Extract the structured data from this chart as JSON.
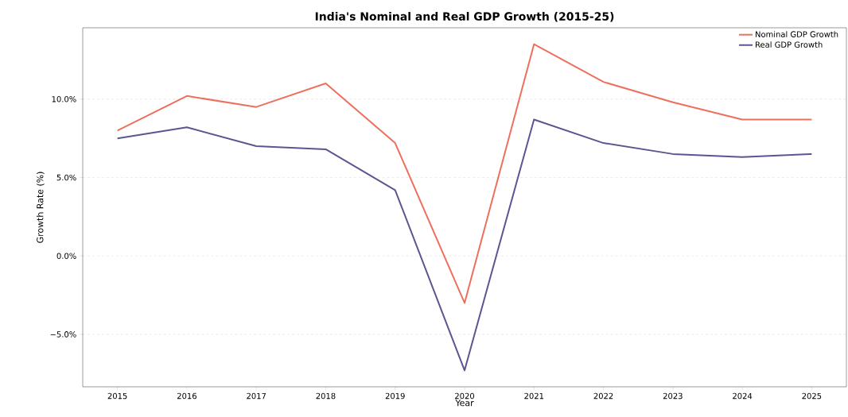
{
  "chart_data": {
    "type": "line",
    "title": "India's Nominal and Real GDP Growth (2015-25)",
    "xlabel": "Year",
    "ylabel": "Growth Rate (%)",
    "x": [
      2015,
      2016,
      2017,
      2018,
      2019,
      2020,
      2021,
      2022,
      2023,
      2024,
      2025
    ],
    "series": [
      {
        "name": "Nominal GDP Growth",
        "color": "#ee6f5e",
        "values": [
          8.0,
          10.2,
          9.5,
          11.0,
          7.2,
          -3.0,
          13.5,
          11.1,
          9.8,
          8.7,
          8.7
        ]
      },
      {
        "name": "Real GDP Growth",
        "color": "#5e5490",
        "values": [
          7.5,
          8.2,
          7.0,
          6.8,
          4.2,
          -7.3,
          8.7,
          7.2,
          6.5,
          6.3,
          6.5
        ]
      }
    ],
    "xlim": [
      2014.5,
      2025.5
    ],
    "ylim": [
      -8.35,
      14.55
    ],
    "xticks": [
      2015,
      2016,
      2017,
      2018,
      2019,
      2020,
      2021,
      2022,
      2023,
      2024,
      2025
    ],
    "yticks": [
      {
        "value": -5,
        "label": "−5.0%"
      },
      {
        "value": 0,
        "label": "0.0%"
      },
      {
        "value": 5,
        "label": "5.0%"
      },
      {
        "value": 10,
        "label": "10.0%"
      }
    ],
    "grid": "y",
    "legend": "top right",
    "marker": "none",
    "line_style": "solid"
  }
}
